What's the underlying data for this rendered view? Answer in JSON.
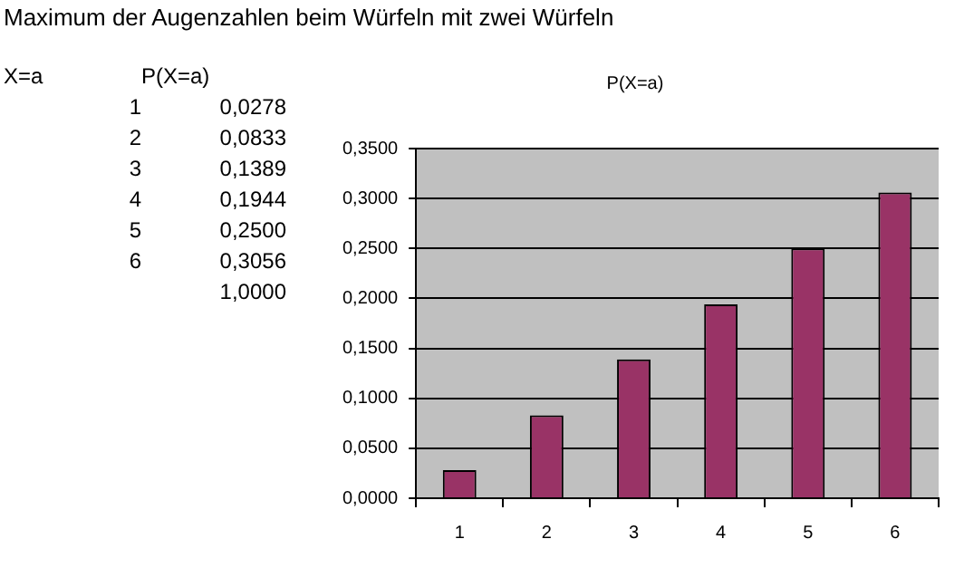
{
  "chart_data": {
    "type": "bar",
    "title": "Maximum der Augenzahlen beim Würfeln mit zwei Würfeln",
    "subtitle": "P(X=a)",
    "categories": [
      "1",
      "2",
      "3",
      "4",
      "5",
      "6"
    ],
    "values": [
      0.028,
      0.083,
      0.139,
      0.194,
      0.25,
      0.306
    ],
    "color": "#993366",
    "ylim": [
      0,
      0.35
    ],
    "yticks": [
      {
        "value": 0,
        "label": "0,0000"
      },
      {
        "value": 0.05,
        "label": "0,0500"
      },
      {
        "value": 0.1,
        "label": "0,1000"
      },
      {
        "value": 0.15,
        "label": "0,1500"
      },
      {
        "value": 0.2,
        "label": "0,2000"
      },
      {
        "value": 0.25,
        "label": "0,2500"
      },
      {
        "value": 0.3,
        "label": "0,3000"
      },
      {
        "value": 0.35,
        "label": "0,3500"
      }
    ],
    "grid": "y",
    "annotations": [
      "X=a",
      "P(X=a)",
      "1",
      "0,0278",
      "2",
      "0,0833",
      "3",
      "0,1389",
      "4",
      "0,1944",
      "5",
      "0,2500",
      "6",
      "0,3056",
      "1,0000"
    ]
  }
}
